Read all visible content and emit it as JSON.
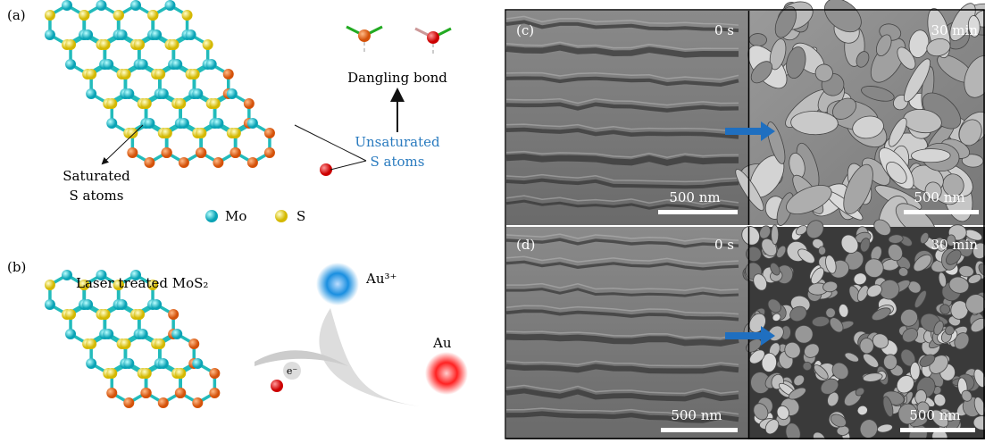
{
  "panel_a": {
    "label": "(a)",
    "dangling_bond": "Dangling bond",
    "unsaturated": [
      "Unsaturated",
      "S atoms"
    ],
    "saturated": [
      "Saturated",
      "S atoms"
    ],
    "legend": [
      "Mo",
      "S"
    ]
  },
  "panel_b": {
    "label": "(b)",
    "title": "Laser treated MoS₂",
    "ion": "Au³⁺",
    "metal": "Au",
    "electron": "e⁻"
  },
  "panel_c": {
    "label": "(c)",
    "left_time": "0 s",
    "right_time": "30 min",
    "left_scale": "500 nm",
    "right_scale": "500 nm"
  },
  "panel_d": {
    "label": "(d)",
    "left_time": "0 s",
    "right_time": "30 min",
    "left_scale": "500 nm",
    "right_scale": "500 nm"
  }
}
